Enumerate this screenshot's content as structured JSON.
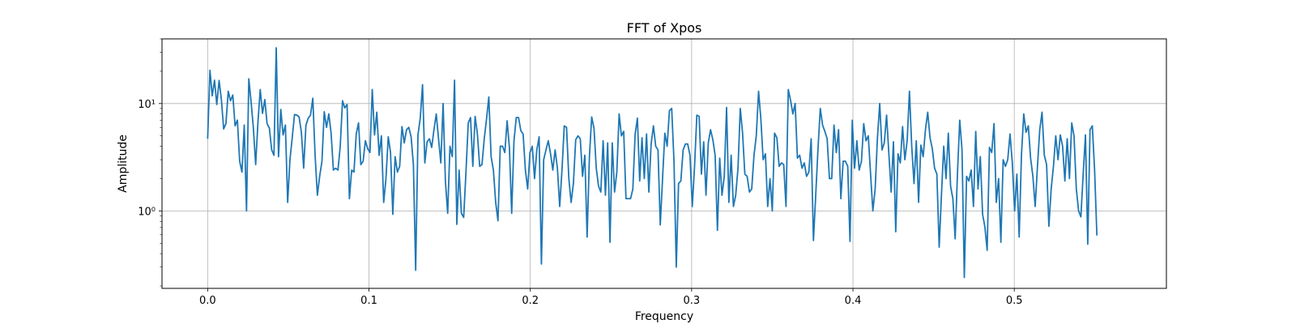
{
  "chart_data": {
    "type": "line",
    "title": "FFT of Xpos",
    "xlabel": "Frequency",
    "ylabel": "Amplitude",
    "yscale": "log",
    "xlim": [
      -0.0283,
      0.5943
    ],
    "ylim": [
      0.19,
      40
    ],
    "grid": true,
    "x_ticks": [
      0.0,
      0.1,
      0.2,
      0.3,
      0.4,
      0.5
    ],
    "x_tick_labels": [
      "0.0",
      "0.1",
      "0.2",
      "0.3",
      "0.4",
      "0.5"
    ],
    "y_ticks": [
      1,
      10
    ],
    "y_tick_labels": [
      "10⁰",
      "10¹"
    ],
    "line_color": "#1f77b4",
    "x_start": 0.0,
    "x_step": 0.001417,
    "series": [
      {
        "values": [
          4.7,
          20.4,
          11.8,
          16.5,
          9.8,
          16.4,
          10.9,
          5.8,
          6.5,
          13.0,
          10.6,
          12.0,
          6.2,
          7.0,
          2.9,
          2.3,
          6.3,
          1.0,
          17.0,
          10.4,
          5.9,
          2.7,
          6.7,
          13.5,
          8.1,
          10.9,
          6.5,
          5.9,
          3.7,
          3.3,
          33.0,
          3.2,
          8.8,
          5.1,
          6.3,
          1.2,
          3.0,
          4.8,
          7.9,
          7.8,
          7.5,
          5.4,
          2.5,
          6.3,
          7.3,
          7.8,
          11.2,
          3.3,
          1.4,
          2.1,
          2.9,
          8.4,
          6.0,
          8.0,
          5.3,
          2.4,
          2.5,
          2.4,
          4.0,
          10.6,
          9.1,
          9.8,
          1.3,
          2.4,
          2.3,
          5.2,
          6.6,
          2.7,
          2.9,
          4.5,
          3.8,
          3.5,
          13.5,
          5.1,
          8.3,
          3.3,
          5.0,
          1.2,
          2.0,
          4.9,
          3.5,
          0.93,
          3.2,
          2.3,
          2.6,
          6.1,
          4.3,
          5.7,
          6.0,
          4.9,
          2.7,
          0.28,
          5.1,
          7.3,
          15.0,
          2.8,
          4.4,
          4.7,
          3.9,
          5.7,
          8.0,
          4.7,
          2.8,
          10.0,
          1.9,
          0.95,
          4.0,
          3.2,
          16.5,
          0.75,
          2.4,
          0.95,
          0.87,
          2.3,
          6.6,
          7.4,
          2.6,
          7.6,
          5.2,
          2.6,
          2.7,
          4.7,
          7.2,
          11.5,
          3.2,
          2.4,
          1.2,
          0.81,
          4.0,
          4.0,
          3.5,
          6.9,
          3.9,
          0.95,
          4.5,
          7.4,
          7.4,
          5.6,
          5.2,
          2.4,
          1.6,
          3.5,
          4.0,
          2.0,
          3.7,
          4.9,
          0.32,
          3.0,
          3.7,
          4.5,
          3.4,
          2.4,
          3.7,
          2.5,
          1.1,
          2.4,
          6.2,
          6.0,
          2.0,
          1.2,
          1.8,
          4.6,
          5.0,
          4.7,
          2.1,
          3.3,
          0.57,
          3.2,
          7.5,
          5.9,
          2.5,
          1.7,
          1.5,
          4.5,
          1.4,
          4.3,
          0.51,
          4.3,
          1.5,
          2.3,
          8.0,
          5.0,
          5.5,
          1.3,
          1.3,
          1.3,
          1.6,
          5.2,
          7.3,
          1.9,
          4.8,
          2.0,
          5.2,
          1.5,
          4.2,
          6.2,
          4.0,
          3.7,
          0.74,
          2.0,
          5.3,
          4.0,
          8.6,
          9.0,
          2.9,
          0.3,
          1.8,
          1.9,
          3.7,
          4.2,
          4.2,
          3.3,
          1.1,
          2.6,
          7.8,
          7.6,
          2.2,
          4.4,
          1.4,
          4.3,
          5.7,
          4.6,
          3.3,
          0.66,
          3.1,
          1.4,
          2.1,
          9.2,
          1.2,
          3.3,
          1.1,
          1.4,
          2.5,
          9.0,
          5.3,
          2.2,
          2.1,
          1.5,
          1.6,
          3.3,
          5.0,
          13.0,
          7.2,
          3.0,
          3.4,
          1.1,
          2.0,
          1.0,
          5.3,
          4.8,
          2.6,
          2.8,
          2.7,
          1.1,
          13.5,
          10.7,
          8.0,
          10.0,
          3.1,
          3.3,
          2.5,
          2.8,
          2.1,
          2.3,
          4.7,
          0.53,
          1.4,
          3.8,
          9.0,
          6.3,
          5.5,
          4.7,
          2.0,
          2.0,
          6.3,
          3.5,
          5.7,
          1.3,
          2.9,
          2.9,
          2.6,
          0.52,
          7.0,
          2.5,
          4.5,
          2.4,
          2.9,
          6.5,
          4.5,
          5.0,
          2.2,
          1.0,
          1.6,
          4.8,
          10.0,
          3.7,
          4.3,
          7.8,
          3.4,
          1.5,
          4.4,
          0.64,
          3.4,
          2.8,
          6.1,
          3.0,
          4.5,
          13.0,
          4.0,
          1.8,
          4.5,
          1.2,
          4.1,
          3.2,
          5.7,
          8.3,
          4.8,
          3.8,
          2.5,
          2.2,
          0.46,
          1.4,
          4.0,
          2.0,
          5.3,
          1.7,
          1.3,
          0.55,
          2.2,
          7.0,
          3.7,
          0.24,
          2.1,
          1.9,
          2.4,
          1.1,
          5.5,
          1.6,
          3.2,
          0.93,
          0.71,
          0.43,
          3.9,
          3.5,
          6.5,
          1.2,
          2.0,
          0.51,
          3.0,
          2.6,
          3.0,
          5.2,
          2.8,
          1.0,
          2.2,
          0.57,
          3.3,
          8.0,
          5.4,
          6.2,
          3.1,
          2.1,
          1.1,
          2.6,
          5.7,
          8.3,
          3.3,
          2.7,
          0.72,
          1.6,
          2.6,
          5.0,
          3.0,
          5.1,
          4.0,
          1.9,
          4.7,
          2.0,
          6.6,
          5.0,
          1.6,
          1.0,
          0.88,
          2.2,
          5.1,
          0.49,
          5.7,
          6.2,
          2.4,
          0.59
        ]
      }
    ]
  }
}
